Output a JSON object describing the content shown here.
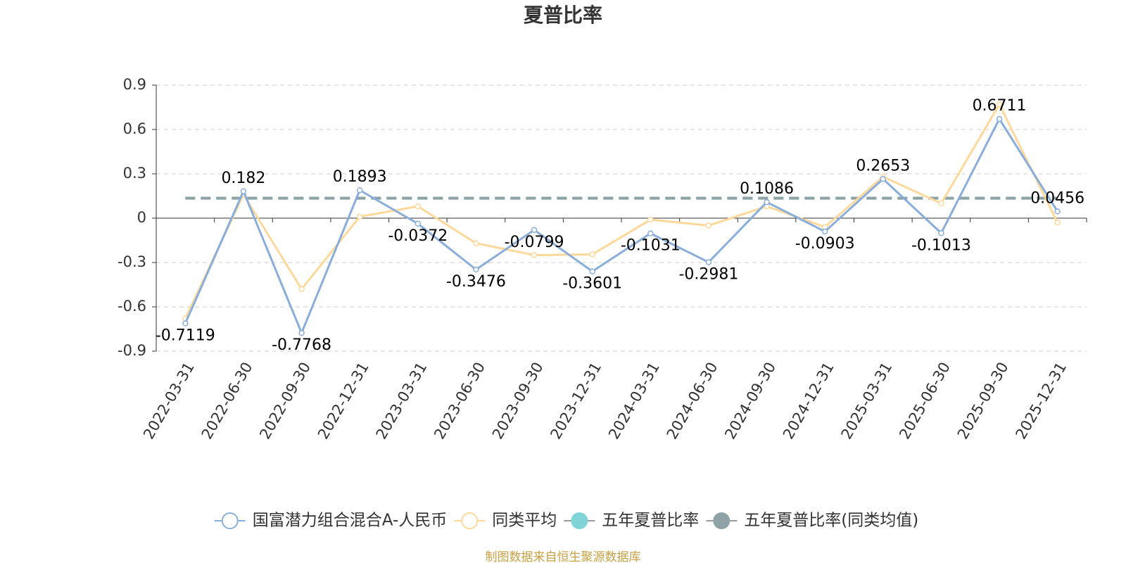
{
  "chart_data": {
    "type": "line",
    "title": "夏普比率",
    "categories": [
      "2022-03-31",
      "2022-06-30",
      "2022-09-30",
      "2022-12-31",
      "2023-03-31",
      "2023-06-30",
      "2023-09-30",
      "2023-12-31",
      "2024-03-31",
      "2024-06-30",
      "2024-09-30",
      "2024-12-31",
      "2025-03-31",
      "2025-06-30",
      "2025-09-30",
      "2025-12-31"
    ],
    "series": [
      {
        "name": "国富潜力组合混合A-人民币",
        "color": "#8aaedb",
        "symbol": "emptyCircle",
        "labels": true,
        "values": [
          -0.7119,
          0.182,
          -0.7768,
          0.1893,
          -0.0372,
          -0.3476,
          -0.0799,
          -0.3601,
          -0.1031,
          -0.2981,
          0.1086,
          -0.0903,
          0.2653,
          -0.1013,
          0.6711,
          0.0456
        ]
      },
      {
        "name": "同类平均",
        "color": "#fdd89a",
        "symbol": "emptyCircle",
        "values": [
          -0.68,
          0.16,
          -0.48,
          0.01,
          0.08,
          -0.17,
          -0.25,
          -0.245,
          -0.01,
          -0.05,
          0.08,
          -0.06,
          0.28,
          0.1,
          0.77,
          -0.03
        ]
      },
      {
        "name": "五年夏普比率",
        "color": "#7fd4d8",
        "symbol": "circle",
        "dashed": true,
        "values": [
          0.135,
          0.135,
          0.135,
          0.135,
          0.135,
          0.135,
          0.135,
          0.135,
          0.135,
          0.135,
          0.135,
          0.135,
          0.135,
          0.135,
          0.135,
          0.135
        ]
      },
      {
        "name": "五年夏普比率(同类均值)",
        "color": "#8fa3a6",
        "symbol": "circle",
        "dashed": true,
        "values": [
          0.135,
          0.135,
          0.135,
          0.135,
          0.135,
          0.135,
          0.135,
          0.135,
          0.135,
          0.135,
          0.135,
          0.135,
          0.135,
          0.135,
          0.135,
          0.135
        ]
      }
    ],
    "ylim": [
      -0.9,
      0.9
    ],
    "yticks": [
      -0.9,
      -0.6,
      -0.3,
      0,
      0.3,
      0.6,
      0.9
    ],
    "grid": true,
    "footer": "制图数据来自恒生聚源数据库"
  }
}
